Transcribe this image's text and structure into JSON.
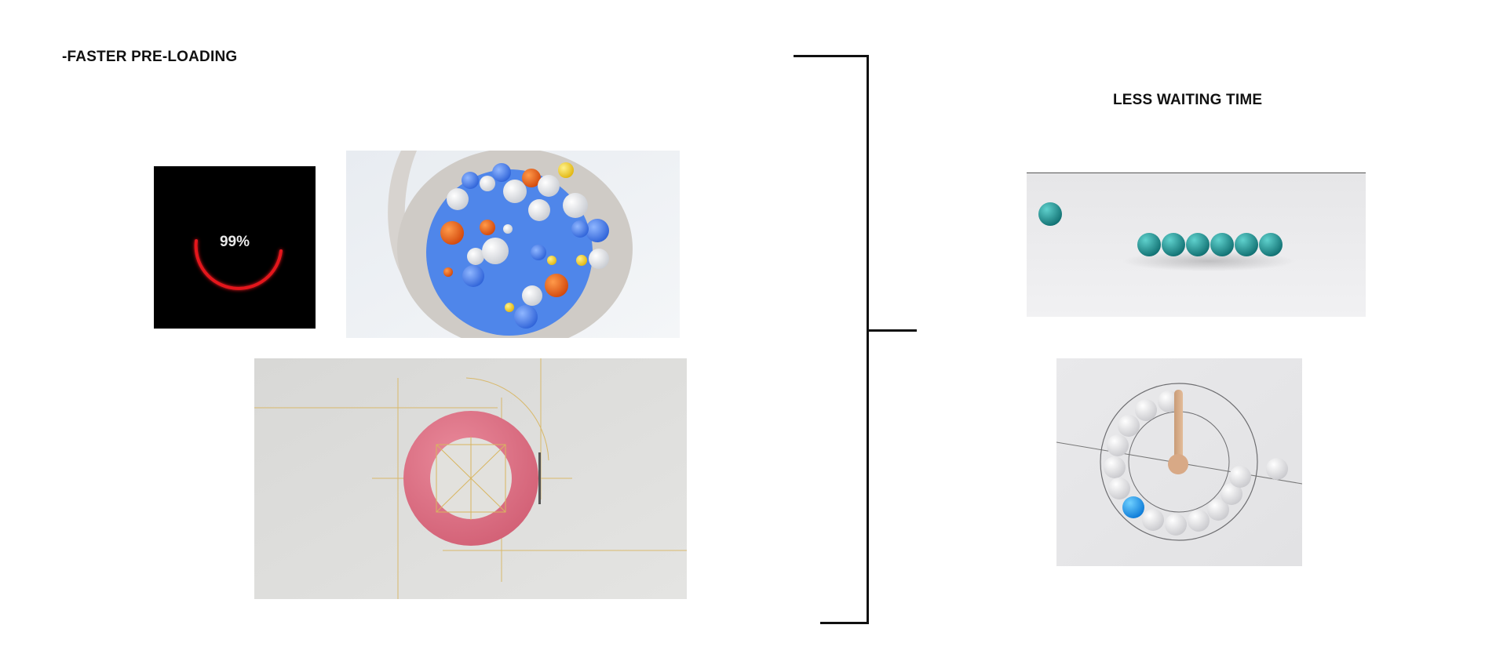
{
  "left_section": {
    "heading": "-FASTER PRE-LOADING",
    "loader": {
      "percent_text": "99%",
      "progress": 0.99,
      "accent_color": "#e4161b"
    }
  },
  "right_section": {
    "heading": "LESS WAITING TIME"
  },
  "icons": {
    "spinner": "red-arc-loader",
    "bracket": "bracket-connector"
  }
}
